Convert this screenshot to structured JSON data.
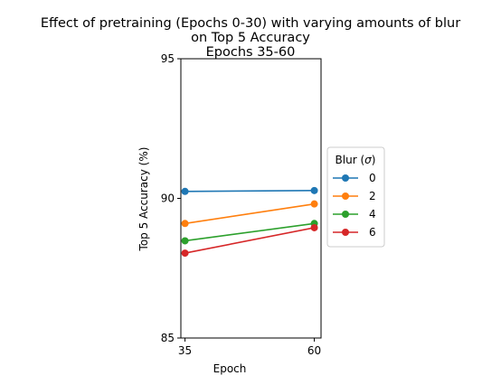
{
  "chart_data": {
    "type": "line",
    "title_lines": [
      "Effect of pretraining (Epochs 0-30) with varying amounts of blur",
      "on Top 5 Accuracy",
      "Epochs 35-60"
    ],
    "xlabel": "Epoch",
    "ylabel": "Top 5 Accuracy (%)",
    "x": [
      35,
      60
    ],
    "xlim": [
      34.2,
      61.3
    ],
    "ylim": [
      85,
      95
    ],
    "xticks": [
      "35",
      "60"
    ],
    "yticks": [
      "85",
      "90",
      "95"
    ],
    "legend_title_prefix": "Blur (",
    "legend_title_symbol": "σ",
    "legend_title_suffix": ")",
    "legend_placement": "right",
    "grid": false,
    "series": [
      {
        "name": "0",
        "color": "#1f77b4",
        "values": [
          90.25,
          90.28
        ]
      },
      {
        "name": "2",
        "color": "#ff7f0e",
        "values": [
          89.1,
          89.8
        ]
      },
      {
        "name": "4",
        "color": "#2ca02c",
        "values": [
          88.48,
          89.1
        ]
      },
      {
        "name": "6",
        "color": "#d62728",
        "values": [
          88.04,
          88.95
        ]
      }
    ]
  }
}
